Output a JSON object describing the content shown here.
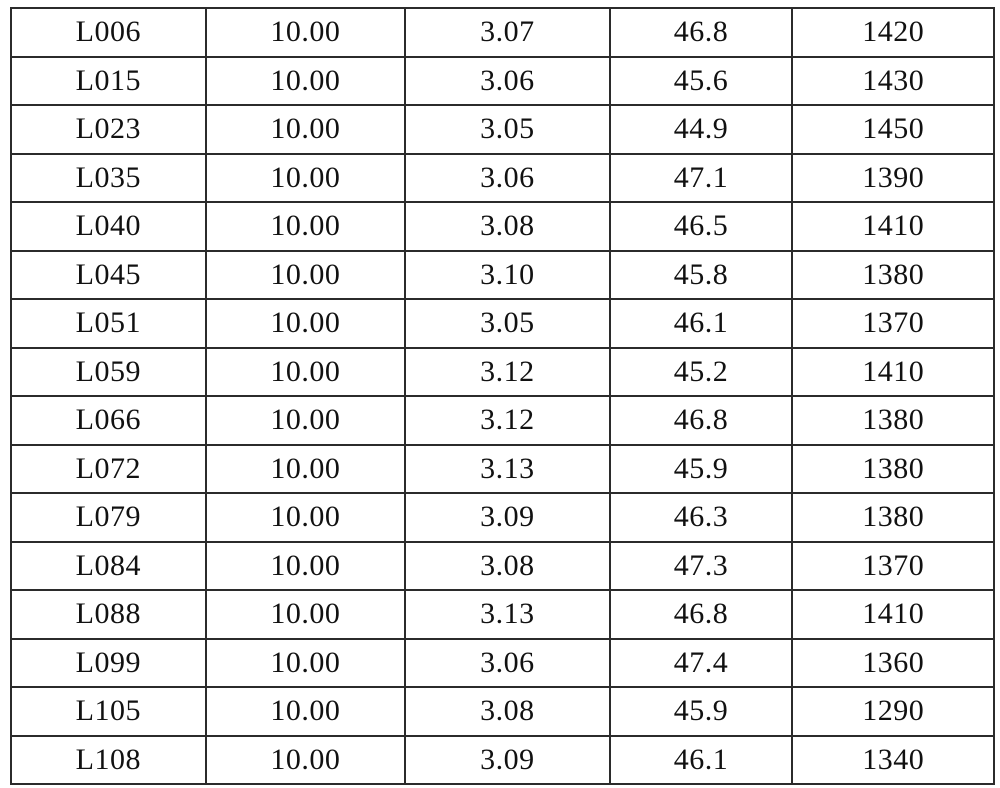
{
  "document": {
    "kind": "scanned-table-page",
    "background_color": "#ffffff",
    "border_color": "#2b2b2b",
    "text_color": "#111111",
    "header_visible": false
  },
  "table": {
    "column_count": 5,
    "row_count": 16,
    "rows": [
      [
        "L006",
        "10.00",
        "3.07",
        "46.8",
        "1420"
      ],
      [
        "L015",
        "10.00",
        "3.06",
        "45.6",
        "1430"
      ],
      [
        "L023",
        "10.00",
        "3.05",
        "44.9",
        "1450"
      ],
      [
        "L035",
        "10.00",
        "3.06",
        "47.1",
        "1390"
      ],
      [
        "L040",
        "10.00",
        "3.08",
        "46.5",
        "1410"
      ],
      [
        "L045",
        "10.00",
        "3.10",
        "45.8",
        "1380"
      ],
      [
        "L051",
        "10.00",
        "3.05",
        "46.1",
        "1370"
      ],
      [
        "L059",
        "10.00",
        "3.12",
        "45.2",
        "1410"
      ],
      [
        "L066",
        "10.00",
        "3.12",
        "46.8",
        "1380"
      ],
      [
        "L072",
        "10.00",
        "3.13",
        "45.9",
        "1380"
      ],
      [
        "L079",
        "10.00",
        "3.09",
        "46.3",
        "1380"
      ],
      [
        "L084",
        "10.00",
        "3.08",
        "47.3",
        "1370"
      ],
      [
        "L088",
        "10.00",
        "3.13",
        "46.8",
        "1410"
      ],
      [
        "L099",
        "10.00",
        "3.06",
        "47.4",
        "1360"
      ],
      [
        "L105",
        "10.00",
        "3.08",
        "45.9",
        "1290"
      ],
      [
        "L108",
        "10.00",
        "3.09",
        "46.1",
        "1340"
      ]
    ]
  }
}
